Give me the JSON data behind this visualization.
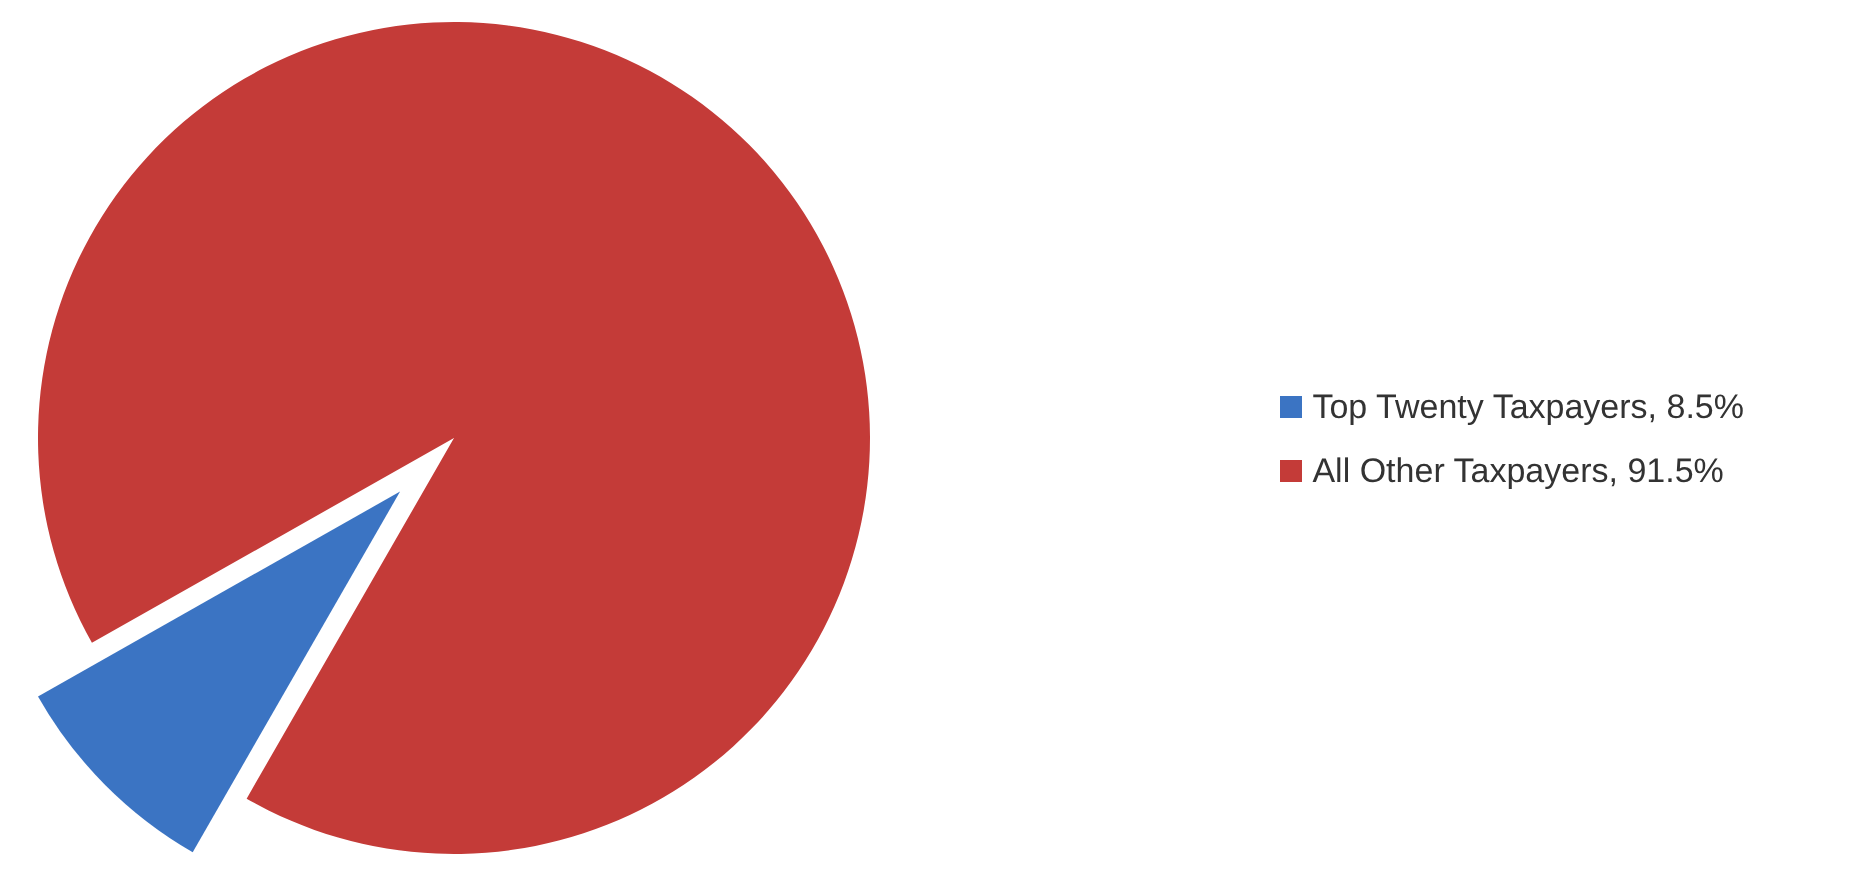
{
  "chart_data": {
    "type": "pie",
    "categories": [
      "Top Twenty Taxpayers, 8.5%",
      "All Other Taxpayers, 91.5%"
    ],
    "values": [
      8.5,
      91.5
    ],
    "colors": [
      "#3b74c3",
      "#c43b38"
    ],
    "legend": "right"
  }
}
